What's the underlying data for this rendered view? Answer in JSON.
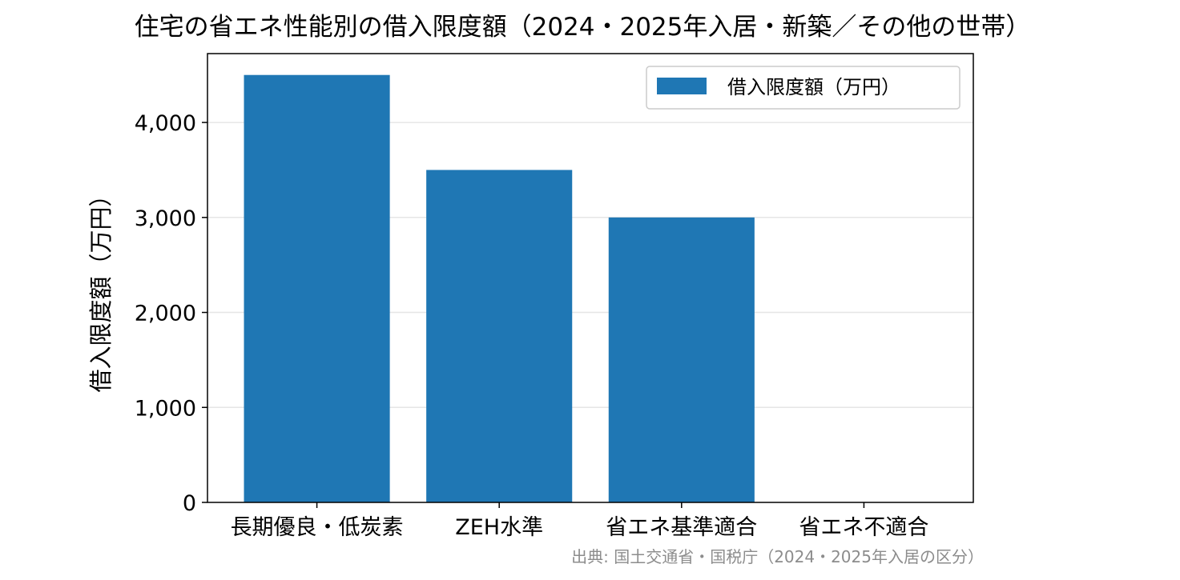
{
  "chart_data": {
    "type": "bar",
    "title": "住宅の省エネ性能別の借入限度額（2024・2025年入居・新築／その他の世帯）",
    "ylabel": "借入限度額（万円）",
    "xlabel": "",
    "categories": [
      "長期優良・低炭素",
      "ZEH水準",
      "省エネ基準適合",
      "省エネ不適合"
    ],
    "series": [
      {
        "name": "借入限度額（万円）",
        "values": [
          4500,
          3500,
          3000,
          0
        ],
        "color": "#1f77b4"
      }
    ],
    "ylim": [
      0,
      4725
    ],
    "yticks": [
      0,
      1000,
      2000,
      3000,
      4000
    ],
    "ytick_labels": [
      "0",
      "1,000",
      "2,000",
      "3,000",
      "4,000"
    ],
    "grid": "horizontal",
    "legend_position": "top-right",
    "source": "出典: 国土交通省・国税庁（2024・2025年入居の区分）"
  }
}
